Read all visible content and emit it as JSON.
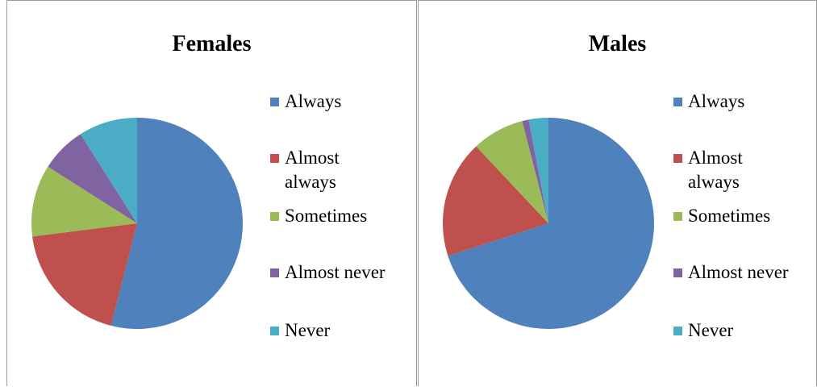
{
  "chart_data": [
    {
      "type": "pie",
      "title": "Females",
      "categories": [
        "Always",
        "Almost always",
        "Sometimes",
        "Almost never",
        "Never"
      ],
      "values": [
        54,
        19,
        11,
        7,
        9
      ],
      "colors": [
        "#4f81bd",
        "#c0504d",
        "#9bbb59",
        "#8064a2",
        "#4bacc6"
      ]
    },
    {
      "type": "pie",
      "title": "Males",
      "categories": [
        "Always",
        "Almost always",
        "Sometimes",
        "Almost never",
        "Never"
      ],
      "values": [
        70,
        18,
        8,
        1,
        3
      ],
      "colors": [
        "#4f81bd",
        "#c0504d",
        "#9bbb59",
        "#8064a2",
        "#4bacc6"
      ]
    }
  ]
}
